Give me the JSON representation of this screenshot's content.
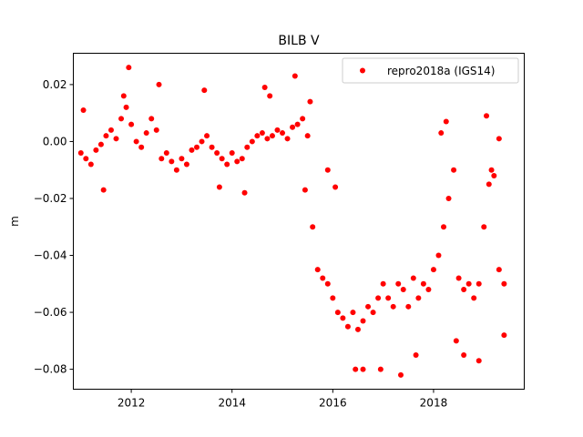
{
  "chart_data": {
    "type": "scatter",
    "title": "BILB V",
    "xlabel": "",
    "ylabel": "m",
    "xlim": [
      2010.85,
      2019.8
    ],
    "ylim": [
      -0.087,
      0.031
    ],
    "x_ticks": [
      2012,
      2014,
      2016,
      2018
    ],
    "x_tick_labels": [
      "2012",
      "2014",
      "2016",
      "2018"
    ],
    "y_ticks": [
      0.02,
      0.0,
      -0.02,
      -0.04,
      -0.06,
      -0.08
    ],
    "y_tick_labels": [
      "0.02",
      "0.00",
      "−0.02",
      "−0.04",
      "−0.06",
      "−0.08"
    ],
    "grid": false,
    "legend_position": "top-right",
    "colors": {
      "series": "#ff0000"
    },
    "series": [
      {
        "name": "repro2018a (IGS14)",
        "marker": "circle",
        "x": [
          2011.0,
          2011.1,
          2011.2,
          2011.3,
          2011.4,
          2011.5,
          2011.6,
          2011.7,
          2011.8,
          2011.9,
          2012.0,
          2012.1,
          2012.2,
          2012.3,
          2012.4,
          2012.5,
          2012.6,
          2012.7,
          2012.8,
          2012.9,
          2013.0,
          2013.1,
          2013.2,
          2013.3,
          2013.4,
          2013.5,
          2013.6,
          2013.7,
          2013.8,
          2013.9,
          2014.0,
          2014.1,
          2014.2,
          2014.3,
          2014.4,
          2014.5,
          2014.6,
          2014.7,
          2014.8,
          2014.9,
          2015.0,
          2015.1,
          2015.2,
          2015.3,
          2015.4,
          2015.5,
          2015.6,
          2015.7,
          2015.8,
          2015.9,
          2016.0,
          2016.1,
          2016.2,
          2016.3,
          2016.4,
          2016.5,
          2016.6,
          2016.7,
          2016.8,
          2016.9,
          2017.0,
          2017.1,
          2017.2,
          2017.3,
          2017.4,
          2017.5,
          2017.6,
          2017.7,
          2017.8,
          2017.9,
          2018.0,
          2018.1,
          2018.2,
          2018.3,
          2018.4,
          2018.5,
          2018.6,
          2018.7,
          2018.8,
          2018.9,
          2019.0,
          2019.1,
          2019.2,
          2019.3,
          2019.4,
          2011.05,
          2011.45,
          2011.85,
          2011.95,
          2012.55,
          2013.45,
          2013.75,
          2014.25,
          2014.65,
          2014.75,
          2015.25,
          2015.45,
          2015.55,
          2015.9,
          2016.05,
          2016.45,
          2016.6,
          2016.95,
          2017.35,
          2017.65,
          2018.15,
          2018.25,
          2018.45,
          2018.6,
          2018.9,
          2019.05,
          2019.15,
          2019.3,
          2019.4
        ],
        "y": [
          -0.004,
          -0.006,
          -0.008,
          -0.003,
          -0.001,
          0.002,
          0.004,
          0.001,
          0.008,
          0.012,
          0.006,
          0.0,
          -0.002,
          0.003,
          0.008,
          0.004,
          -0.006,
          -0.004,
          -0.007,
          -0.01,
          -0.006,
          -0.008,
          -0.003,
          -0.002,
          0.0,
          0.002,
          -0.002,
          -0.004,
          -0.006,
          -0.008,
          -0.004,
          -0.007,
          -0.006,
          -0.002,
          0.0,
          0.002,
          0.003,
          0.001,
          0.002,
          0.004,
          0.003,
          0.001,
          0.005,
          0.006,
          0.008,
          0.002,
          -0.03,
          -0.045,
          -0.048,
          -0.05,
          -0.055,
          -0.06,
          -0.062,
          -0.065,
          -0.06,
          -0.066,
          -0.063,
          -0.058,
          -0.06,
          -0.055,
          -0.05,
          -0.055,
          -0.058,
          -0.05,
          -0.052,
          -0.058,
          -0.048,
          -0.055,
          -0.05,
          -0.052,
          -0.045,
          -0.04,
          -0.03,
          -0.02,
          -0.01,
          -0.048,
          -0.052,
          -0.05,
          -0.055,
          -0.05,
          -0.03,
          -0.015,
          -0.012,
          -0.045,
          -0.05,
          0.011,
          -0.017,
          0.016,
          0.026,
          0.02,
          0.018,
          -0.016,
          -0.018,
          0.019,
          0.016,
          0.023,
          -0.017,
          0.014,
          -0.01,
          -0.016,
          -0.08,
          -0.08,
          -0.08,
          -0.082,
          -0.075,
          0.003,
          0.007,
          -0.07,
          -0.075,
          -0.077,
          0.009,
          -0.01,
          0.001,
          -0.068
        ]
      }
    ]
  }
}
